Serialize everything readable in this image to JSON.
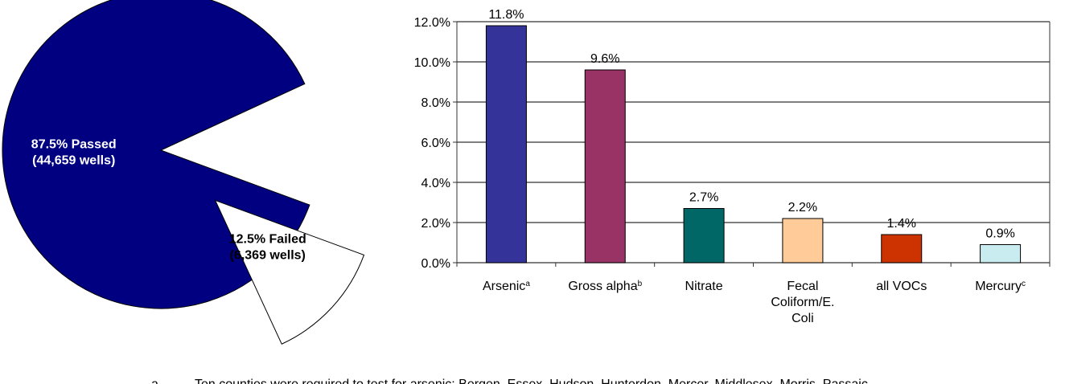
{
  "chart_data": [
    {
      "type": "pie",
      "values": [
        87.5,
        12.5
      ],
      "value_labels": [
        "87.5% Passed",
        "12.5% Failed"
      ],
      "sublabels": [
        "(44,659 wells)",
        "(6,369 wells)"
      ],
      "colors": [
        "#000080",
        "#ffffff"
      ],
      "exploded": [
        false,
        true
      ]
    },
    {
      "type": "bar",
      "categories": [
        "Arsenic",
        "Gross alpha",
        "Nitrate",
        "Fecal Coliform/E. Coli",
        "all VOCs",
        "Mercury"
      ],
      "category_notes": [
        "a",
        "b",
        null,
        null,
        null,
        "c"
      ],
      "values": [
        11.8,
        9.6,
        2.7,
        2.2,
        1.4,
        0.9
      ],
      "value_labels": [
        "11.8%",
        "9.6%",
        "2.7%",
        "2.2%",
        "1.4%",
        "0.9%"
      ],
      "colors": [
        "#333399",
        "#993366",
        "#006666",
        "#ffcc99",
        "#cc3300",
        "#c8ecf0"
      ],
      "ylim": [
        0,
        12
      ],
      "yticks": [
        {
          "value": 0,
          "label": "0.0%"
        },
        {
          "value": 2,
          "label": "2.0%"
        },
        {
          "value": 4,
          "label": "4.0%"
        },
        {
          "value": 6,
          "label": "6.0%"
        },
        {
          "value": 8,
          "label": "8.0%"
        },
        {
          "value": 10,
          "label": "10.0%"
        },
        {
          "value": 12,
          "label": "12.0%"
        }
      ],
      "grid": true
    }
  ],
  "footnotes": [
    {
      "mark": "a",
      "text": "Ten counties were required to test for arsenic: Bergen, Essex, Hudson, Hunterdon, Mercer, Middlesex, Morris, Passaic,"
    }
  ]
}
